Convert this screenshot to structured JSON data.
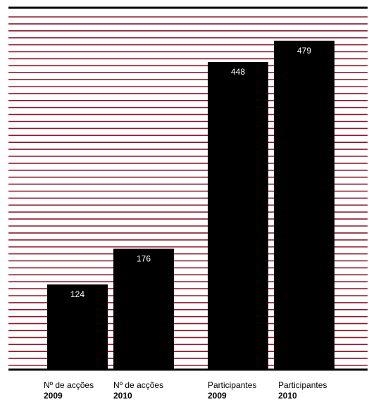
{
  "chart_data": {
    "type": "bar",
    "categories": [
      {
        "label": "Nº de acções",
        "year": "2009"
      },
      {
        "label": "Nº de acções",
        "year": "2010"
      },
      {
        "label": "Participantes",
        "year": "2009"
      },
      {
        "label": "Participantes",
        "year": "2010"
      }
    ],
    "values": [
      124,
      176,
      448,
      479
    ],
    "ylim": [
      0,
      527
    ],
    "grid": true,
    "colors": {
      "bar": "#000000",
      "grid": "#8b1a2b",
      "label": "#ffffff",
      "axis": "#000000"
    }
  }
}
